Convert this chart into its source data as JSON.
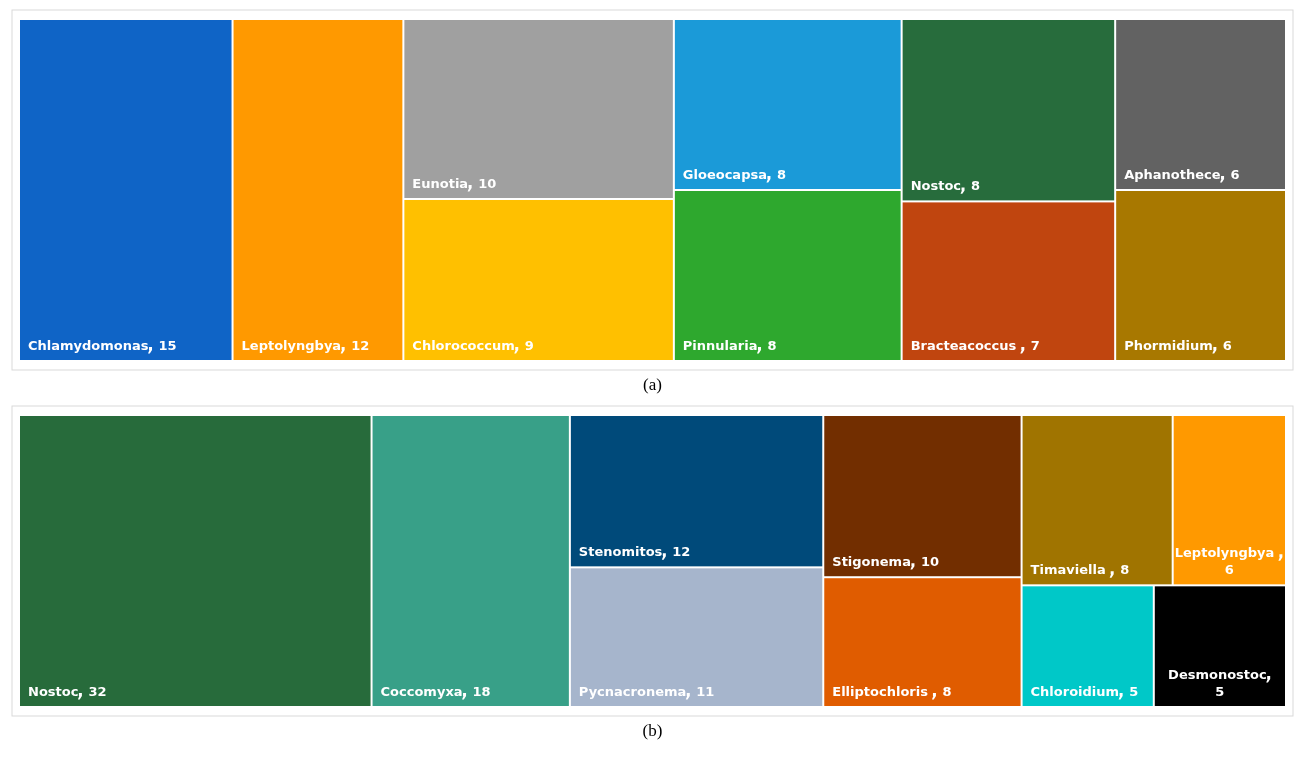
{
  "chart_data": [
    {
      "type": "other",
      "title": "(a)",
      "categories": [
        "Chlamydomonas",
        "Leptolyngbya",
        "Eunotia",
        "Chlorococcum",
        "Gloeocapsa",
        "Pinnularia",
        "Nostoc",
        "Bracteacoccus ",
        "Aphanothece",
        "Phormidium"
      ],
      "values": [
        15,
        12,
        10,
        9,
        8,
        8,
        8,
        7,
        6,
        6
      ],
      "colors": [
        "#0f64c6",
        "#ff9900",
        "#a0a0a0",
        "#ffc000",
        "#1b9ad8",
        "#2ea82e",
        "#276c3c",
        "#c0450f",
        "#626262",
        "#a87800"
      ],
      "data_labels": true
    },
    {
      "type": "other",
      "title": "(b)",
      "categories": [
        "Nostoc",
        "Coccomyxa",
        "Stenomitos",
        "Pycnacronema",
        "Stigonema",
        "Elliptochloris ",
        "Timaviella ",
        "Leptolyngbya ",
        "Chloroidium",
        "Desmonostoc"
      ],
      "values": [
        32,
        18,
        12,
        11,
        10,
        8,
        8,
        6,
        5,
        5
      ],
      "colors": [
        "#276b3b",
        "#38a088",
        "#004a7a",
        "#a6b5cc",
        "#722e00",
        "#e05c00",
        "#a07400",
        "#ff9900",
        "#00c8c8",
        "#000000"
      ],
      "data_labels": true
    }
  ]
}
